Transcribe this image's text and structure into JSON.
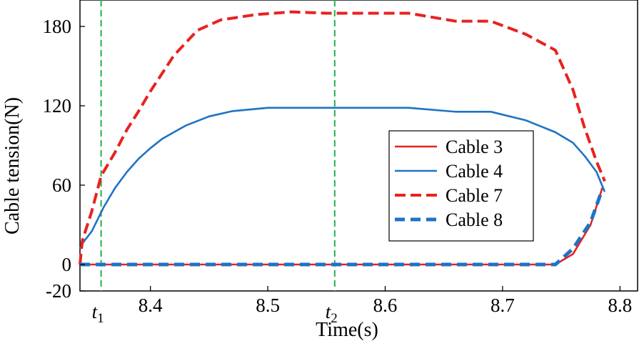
{
  "chart_data": {
    "type": "line",
    "xlabel": "Time(s)",
    "ylabel": "Cable tension(N)",
    "xlim": [
      8.34,
      8.815
    ],
    "ylim": [
      -20,
      200
    ],
    "xticks": [
      8.4,
      8.5,
      8.6,
      8.7,
      8.8
    ],
    "xtick_labels": [
      "8.4",
      "8.5",
      "8.6",
      "8.7",
      "8.8"
    ],
    "yticks": [
      -20,
      0,
      60,
      120,
      180
    ],
    "ytick_labels": [
      "-20",
      "0",
      "60",
      "120",
      "180"
    ],
    "markers": [
      {
        "x": 8.358,
        "label": "t",
        "sub": "1",
        "color": "#22b04c"
      },
      {
        "x": 8.557,
        "label": "t",
        "sub": "2",
        "color": "#22b04c"
      }
    ],
    "grid": false,
    "legend_position": "right",
    "series": [
      {
        "name": "Cable 3",
        "color": "#e8221f",
        "style": "solid",
        "x": [
          8.34,
          8.745,
          8.76,
          8.775,
          8.785
        ],
        "y": [
          0,
          0,
          8,
          30,
          58
        ]
      },
      {
        "name": "Cable 4",
        "color": "#1f73c4",
        "style": "solid",
        "x": [
          8.34,
          8.343,
          8.35,
          8.36,
          8.37,
          8.38,
          8.39,
          8.4,
          8.41,
          8.43,
          8.45,
          8.47,
          8.5,
          8.53,
          8.56,
          8.59,
          8.62,
          8.66,
          8.69,
          8.72,
          8.745,
          8.76,
          8.77,
          8.78,
          8.787
        ],
        "y": [
          12,
          17,
          25,
          43,
          58,
          70,
          80,
          88,
          95,
          105,
          112,
          116,
          118.5,
          118.5,
          118.5,
          118.5,
          118.5,
          115.5,
          115.5,
          109,
          100,
          92,
          82,
          70,
          55
        ]
      },
      {
        "name": "Cable 7",
        "color": "#e8221f",
        "style": "dashed",
        "x": [
          8.34,
          8.342,
          8.35,
          8.358,
          8.37,
          8.38,
          8.39,
          8.4,
          8.42,
          8.44,
          8.46,
          8.49,
          8.52,
          8.55,
          8.58,
          8.62,
          8.66,
          8.69,
          8.72,
          8.745,
          8.76,
          8.77,
          8.78,
          8.787
        ],
        "y": [
          0,
          18,
          40,
          67,
          85,
          102,
          116,
          131,
          158,
          177,
          185,
          189,
          191,
          190,
          190,
          190,
          184,
          184,
          174,
          162,
          132,
          103,
          78,
          63
        ]
      },
      {
        "name": "Cable 8",
        "color": "#1f73c4",
        "style": "bold-dashed",
        "x": [
          8.34,
          8.745,
          8.76,
          8.775,
          8.785
        ],
        "y": [
          0,
          0,
          12,
          32,
          57
        ]
      }
    ]
  }
}
